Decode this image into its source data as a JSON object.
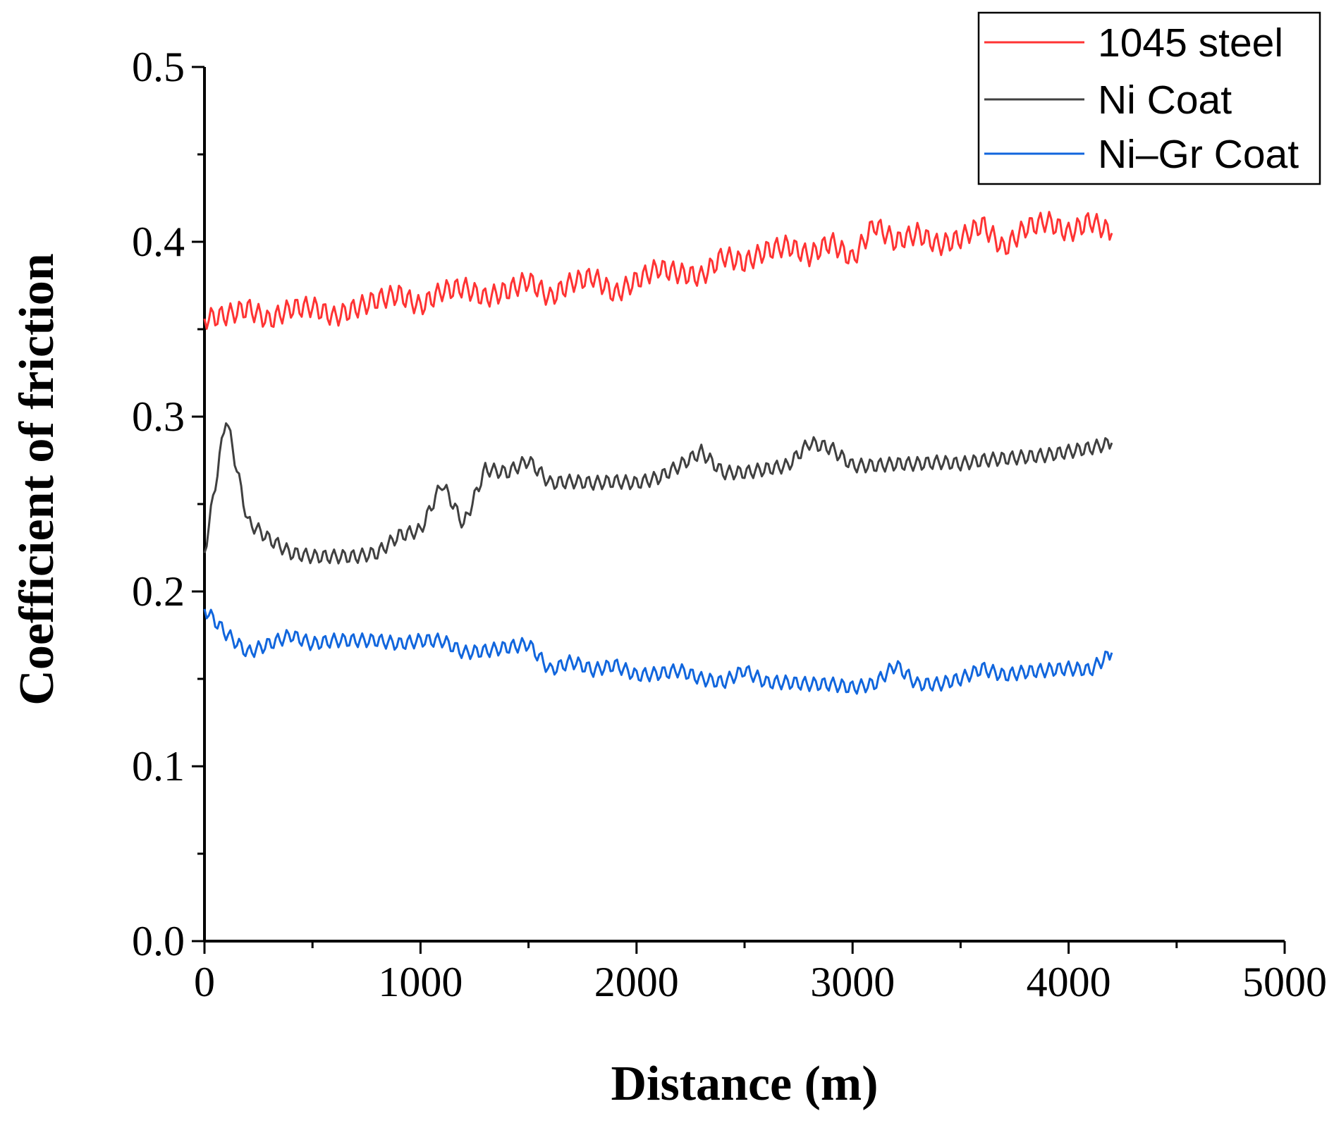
{
  "chart_data": {
    "type": "line",
    "title": "",
    "xlabel": "Distance (m)",
    "ylabel": "Coefficient of friction",
    "xlim": [
      0,
      5000
    ],
    "ylim": [
      0.0,
      0.5
    ],
    "x_ticks": [
      0,
      1000,
      2000,
      3000,
      4000,
      5000
    ],
    "x_tick_labels": [
      "0",
      "1000",
      "2000",
      "3000",
      "4000",
      "5000"
    ],
    "y_ticks": [
      0.0,
      0.1,
      0.2,
      0.3,
      0.4,
      0.5
    ],
    "y_tick_labels": [
      "0.0",
      "0.1",
      "0.2",
      "0.3",
      "0.4",
      "0.5"
    ],
    "grid": false,
    "legend_position": "top-right",
    "x": [
      0,
      100,
      200,
      300,
      400,
      500,
      600,
      700,
      800,
      900,
      1000,
      1100,
      1200,
      1300,
      1400,
      1500,
      1600,
      1700,
      1800,
      1900,
      2000,
      2100,
      2200,
      2300,
      2400,
      2500,
      2600,
      2700,
      2800,
      2900,
      3000,
      3100,
      3200,
      3300,
      3400,
      3500,
      3600,
      3700,
      3800,
      3900,
      4000,
      4100,
      4200
    ],
    "series": [
      {
        "name": "1045 steel",
        "color": "#ff3333",
        "values": [
          0.356,
          0.358,
          0.362,
          0.355,
          0.362,
          0.363,
          0.357,
          0.362,
          0.367,
          0.37,
          0.363,
          0.372,
          0.374,
          0.368,
          0.372,
          0.378,
          0.368,
          0.377,
          0.38,
          0.37,
          0.378,
          0.385,
          0.382,
          0.38,
          0.392,
          0.388,
          0.395,
          0.398,
          0.392,
          0.4,
          0.39,
          0.41,
          0.4,
          0.405,
          0.398,
          0.402,
          0.41,
          0.396,
          0.408,
          0.412,
          0.405,
          0.412,
          0.405
        ]
      },
      {
        "name": "Ni Coat",
        "color": "#404040",
        "values": [
          0.222,
          0.3,
          0.24,
          0.23,
          0.222,
          0.22,
          0.22,
          0.22,
          0.222,
          0.232,
          0.235,
          0.262,
          0.238,
          0.27,
          0.268,
          0.275,
          0.262,
          0.263,
          0.262,
          0.263,
          0.262,
          0.265,
          0.272,
          0.28,
          0.268,
          0.268,
          0.27,
          0.272,
          0.285,
          0.282,
          0.272,
          0.272,
          0.273,
          0.273,
          0.274,
          0.273,
          0.275,
          0.276,
          0.277,
          0.278,
          0.28,
          0.282,
          0.285
        ]
      },
      {
        "name": "Ni–Gr Coat",
        "color": "#1166dd",
        "values": [
          0.19,
          0.176,
          0.165,
          0.17,
          0.175,
          0.17,
          0.172,
          0.172,
          0.172,
          0.17,
          0.172,
          0.172,
          0.165,
          0.166,
          0.168,
          0.17,
          0.155,
          0.16,
          0.155,
          0.158,
          0.152,
          0.153,
          0.155,
          0.15,
          0.148,
          0.155,
          0.148,
          0.148,
          0.147,
          0.147,
          0.145,
          0.147,
          0.158,
          0.147,
          0.147,
          0.15,
          0.156,
          0.152,
          0.154,
          0.155,
          0.156,
          0.155,
          0.165
        ]
      }
    ]
  }
}
